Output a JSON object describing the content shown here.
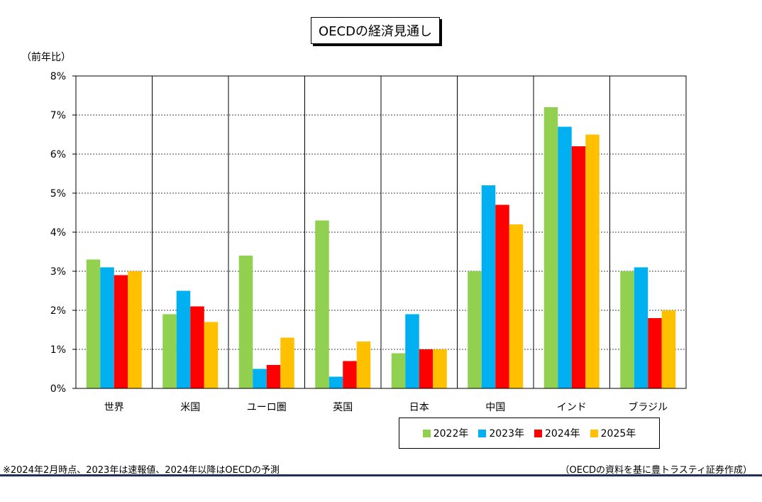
{
  "title": "OECDの経済見通し",
  "unit_label": "（前年比）",
  "footnote": "※2024年2月時点、2023年は速報値、2024年以降はOECDの予測",
  "source": "（OECDの資料を基に豊トラスティ証券作成）",
  "chart_data": {
    "type": "bar",
    "title": "OECDの経済見通し",
    "ylabel": "（前年比）",
    "xlabel": "",
    "ylim": [
      0,
      8
    ],
    "yticks": [
      "0%",
      "1%",
      "2%",
      "3%",
      "4%",
      "5%",
      "6%",
      "7%",
      "8%"
    ],
    "grid": true,
    "legend_position": "bottom-right",
    "categories": [
      "世界",
      "米国",
      "ユーロ圏",
      "英国",
      "日本",
      "中国",
      "インド",
      "ブラジル"
    ],
    "series": [
      {
        "name": "2022年",
        "color": "#92d050",
        "values": [
          3.3,
          1.9,
          3.4,
          4.3,
          0.9,
          3.0,
          7.2,
          3.0
        ]
      },
      {
        "name": "2023年",
        "color": "#00b0f0",
        "values": [
          3.1,
          2.5,
          0.5,
          0.3,
          1.9,
          5.2,
          6.7,
          3.1
        ]
      },
      {
        "name": "2024年",
        "color": "#ff0000",
        "values": [
          2.9,
          2.1,
          0.6,
          0.7,
          1.0,
          4.7,
          6.2,
          1.8
        ]
      },
      {
        "name": "2025年",
        "color": "#ffc000",
        "values": [
          3.0,
          1.7,
          1.3,
          1.2,
          1.0,
          4.2,
          6.5,
          2.0
        ]
      }
    ]
  }
}
